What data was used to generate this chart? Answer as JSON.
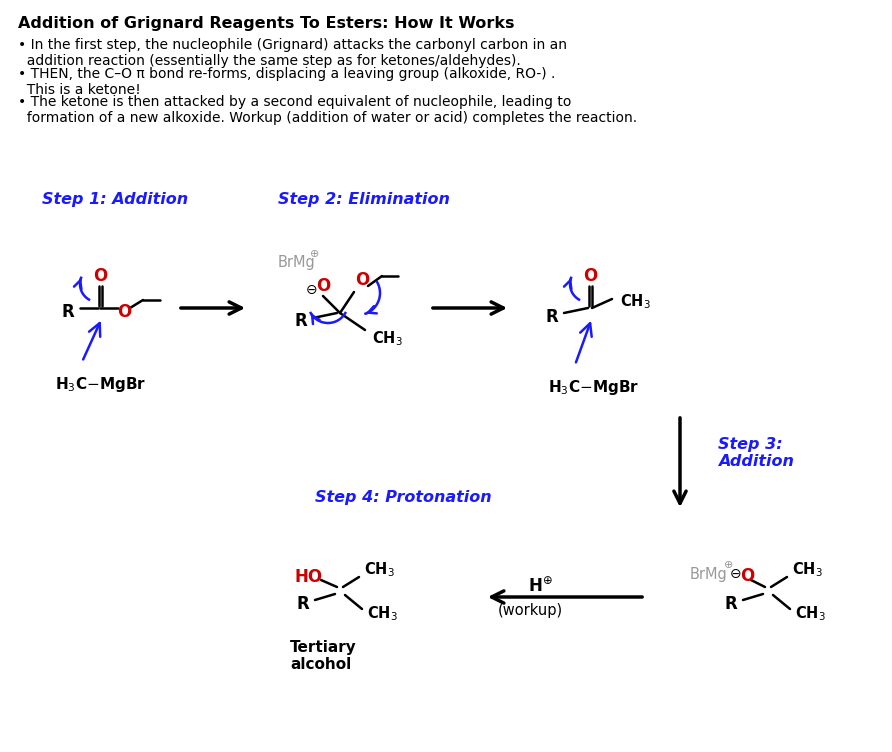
{
  "title": "Addition of Grignard Reagents To Esters: How It Works",
  "bullet1": "• In the first step, the nucleophile (Grignard) attacks the carbonyl carbon in an\n  addition reaction (essentially the same step as for ketones/aldehydes).",
  "bullet2": "• THEN, the C–O π bond re-forms, displacing a leaving group (alkoxide, RO-) .\n  This is a ketone!",
  "bullet3": "• The ketone is then attacked by a second equivalent of nucleophile, leading to\n  formation of a new alkoxide. Workup (addition of water or acid) completes the reaction.",
  "step1_label": "Step 1: Addition",
  "step2_label": "Step 2: Elimination",
  "step3_label": "Step 3:\nAddition",
  "step4_label": "Step 4: Protonation",
  "blue": "#1a1aff",
  "red": "#cc0000",
  "gray": "#999999",
  "black": "#000000",
  "bg": "#FFFFFF"
}
